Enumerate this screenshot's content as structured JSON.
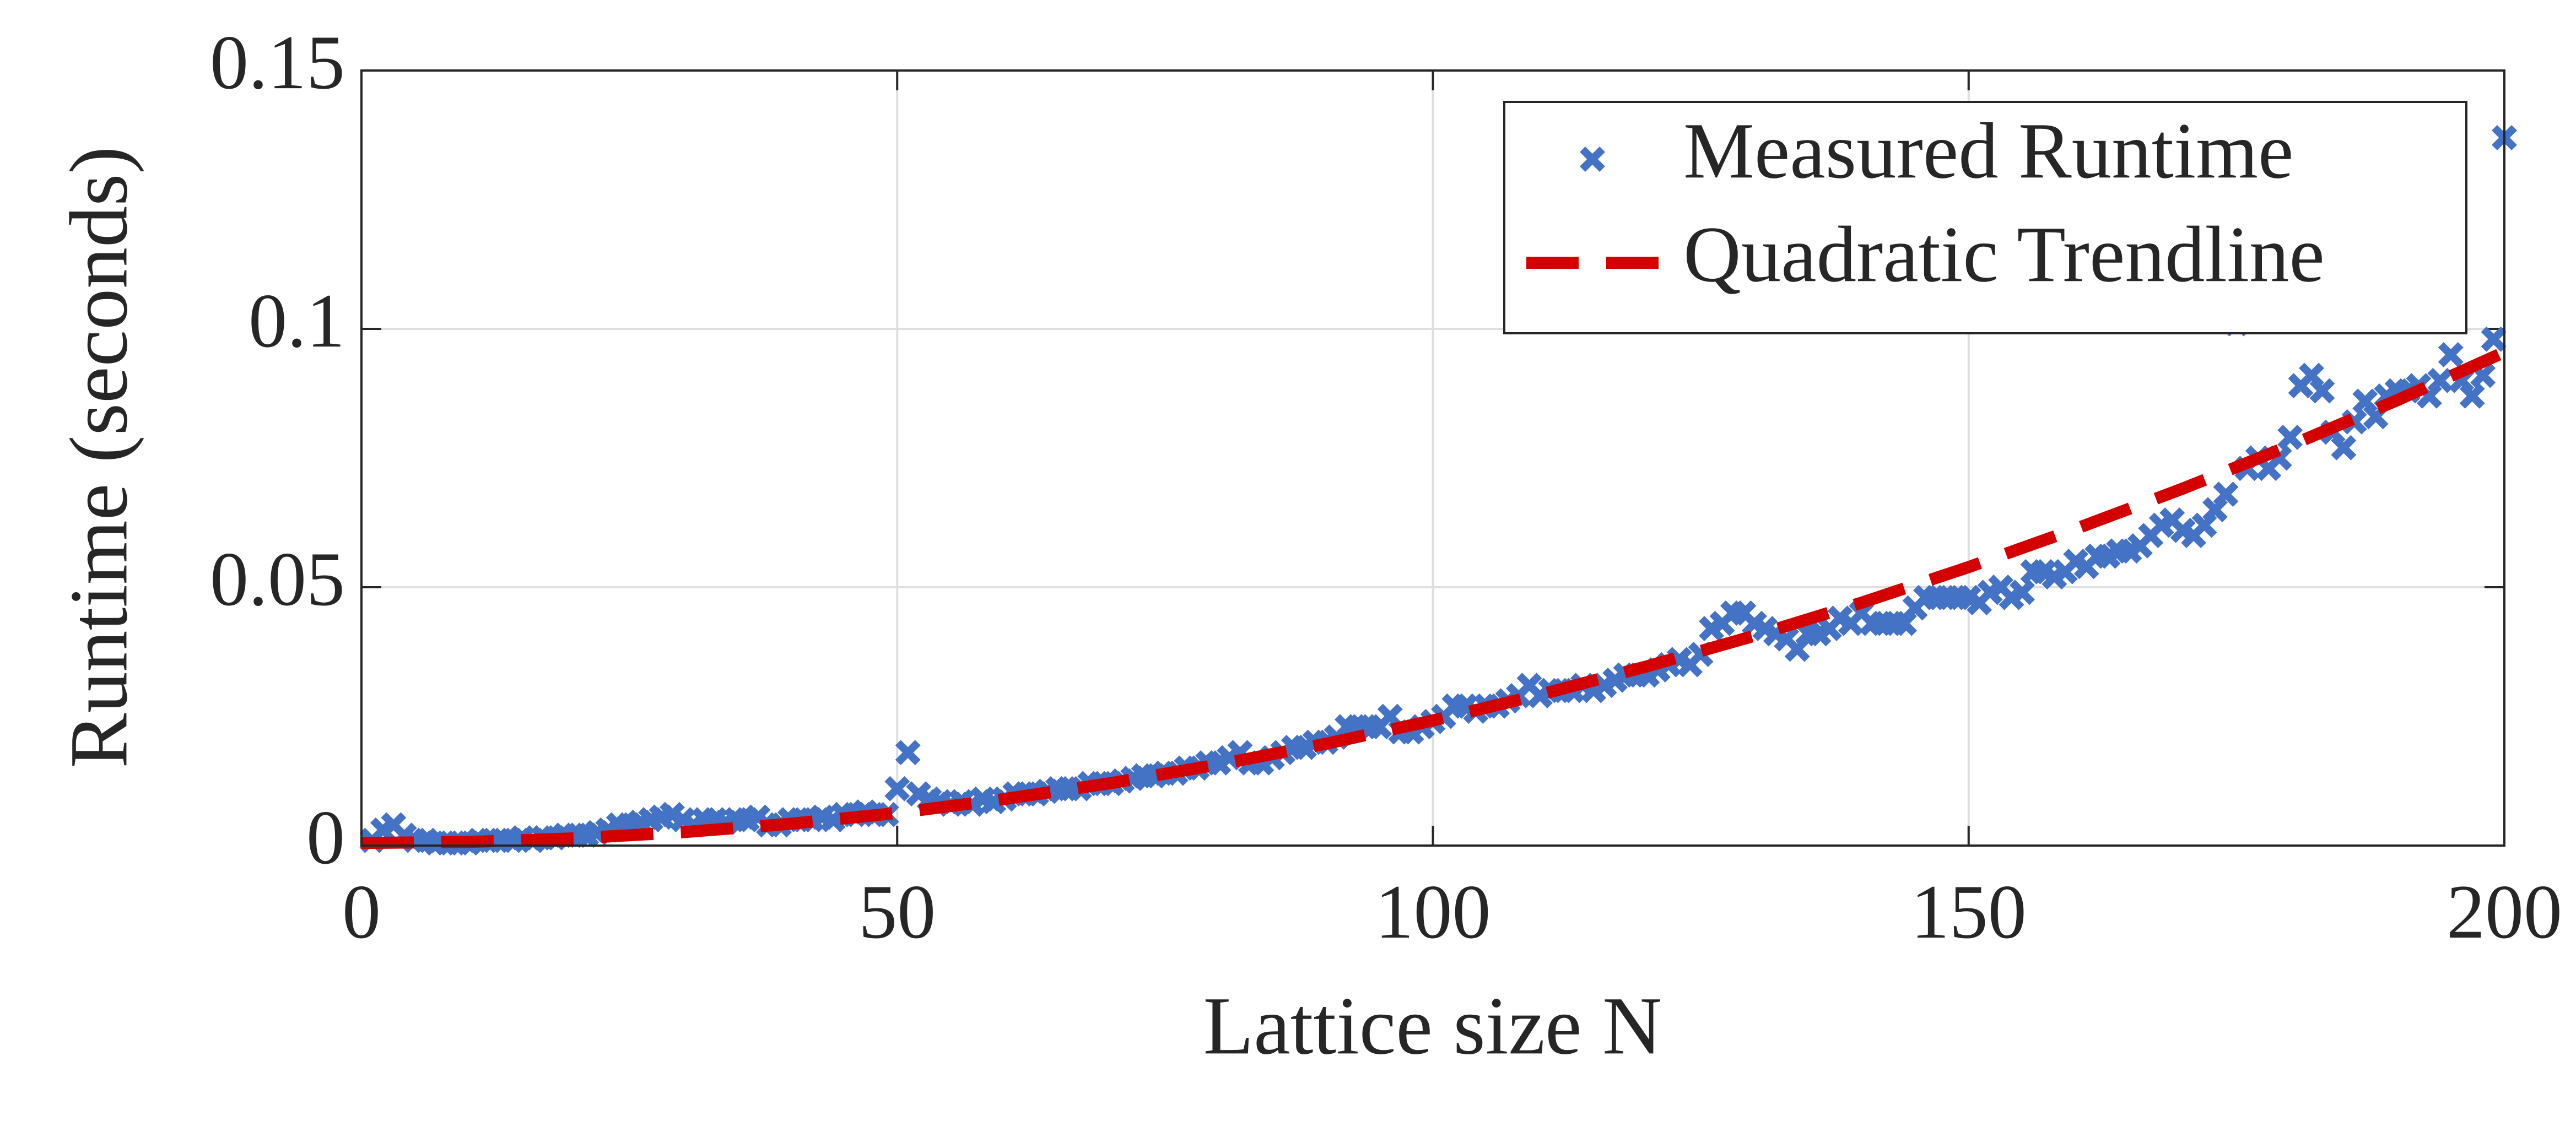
{
  "chart_data": {
    "type": "scatter",
    "xlabel": "Lattice size N",
    "ylabel": "Runtime (seconds)",
    "xlim": [
      0,
      200
    ],
    "ylim": [
      0,
      0.15
    ],
    "xticks": [
      0,
      50,
      100,
      150,
      200
    ],
    "yticks": [
      0,
      0.05,
      0.1,
      0.15
    ],
    "grid": true,
    "legend": "upper right",
    "series": [
      {
        "name": "Measured Runtime",
        "type": "scatter",
        "color": "#4472c4",
        "x": [
          1,
          2,
          3,
          4,
          5,
          6,
          7,
          8,
          9,
          10,
          11,
          12,
          13,
          14,
          15,
          16,
          17,
          18,
          19,
          20,
          21,
          22,
          23,
          24,
          25,
          26,
          27,
          28,
          29,
          30,
          31,
          32,
          33,
          34,
          35,
          36,
          37,
          38,
          39,
          40,
          41,
          42,
          43,
          44,
          45,
          46,
          47,
          48,
          49,
          50,
          51,
          52,
          53,
          54,
          55,
          56,
          57,
          58,
          59,
          60,
          61,
          62,
          63,
          64,
          65,
          66,
          67,
          68,
          69,
          70,
          71,
          72,
          73,
          74,
          75,
          76,
          77,
          78,
          79,
          80,
          81,
          82,
          83,
          84,
          85,
          86,
          87,
          88,
          89,
          90,
          91,
          92,
          93,
          94,
          95,
          96,
          97,
          98,
          99,
          100,
          101,
          102,
          103,
          104,
          105,
          106,
          107,
          108,
          109,
          110,
          111,
          112,
          113,
          114,
          115,
          116,
          117,
          118,
          119,
          120,
          121,
          122,
          123,
          124,
          125,
          126,
          127,
          128,
          129,
          130,
          131,
          132,
          133,
          134,
          135,
          136,
          137,
          138,
          139,
          140,
          141,
          142,
          143,
          144,
          145,
          146,
          147,
          148,
          149,
          150,
          151,
          152,
          153,
          154,
          155,
          156,
          157,
          158,
          159,
          160,
          161,
          162,
          163,
          164,
          165,
          166,
          167,
          168,
          169,
          170,
          171,
          172,
          173,
          174,
          175,
          176,
          177,
          178,
          179,
          180,
          181,
          182,
          183,
          184,
          185,
          186,
          187,
          188,
          189,
          190,
          191,
          192,
          193,
          194,
          195,
          196,
          197,
          198,
          199,
          200
        ],
        "values": [
          0.001,
          0.003,
          0.004,
          0.002,
          0.001,
          0.001,
          0.0005,
          0.0005,
          0.0005,
          0.0005,
          0.001,
          0.001,
          0.001,
          0.001,
          0.0015,
          0.001,
          0.0015,
          0.0015,
          0.002,
          0.002,
          0.002,
          0.0025,
          0.003,
          0.004,
          0.004,
          0.0045,
          0.005,
          0.0055,
          0.006,
          0.005,
          0.004,
          0.005,
          0.005,
          0.0045,
          0.005,
          0.005,
          0.0055,
          0.004,
          0.004,
          0.005,
          0.005,
          0.005,
          0.0055,
          0.005,
          0.006,
          0.006,
          0.0065,
          0.006,
          0.006,
          0.011,
          0.018,
          0.01,
          0.009,
          0.0085,
          0.008,
          0.0085,
          0.008,
          0.009,
          0.0085,
          0.009,
          0.01,
          0.01,
          0.01,
          0.0105,
          0.011,
          0.011,
          0.011,
          0.012,
          0.012,
          0.012,
          0.0125,
          0.013,
          0.0135,
          0.0135,
          0.014,
          0.014,
          0.015,
          0.015,
          0.016,
          0.016,
          0.017,
          0.018,
          0.016,
          0.016,
          0.017,
          0.018,
          0.019,
          0.019,
          0.02,
          0.02,
          0.021,
          0.023,
          0.023,
          0.023,
          0.023,
          0.025,
          0.022,
          0.022,
          0.023,
          0.024,
          0.025,
          0.027,
          0.027,
          0.026,
          0.027,
          0.027,
          0.028,
          0.029,
          0.031,
          0.029,
          0.03,
          0.03,
          0.03,
          0.031,
          0.03,
          0.031,
          0.032,
          0.033,
          0.033,
          0.033,
          0.034,
          0.035,
          0.036,
          0.035,
          0.037,
          0.042,
          0.043,
          0.045,
          0.045,
          0.043,
          0.042,
          0.041,
          0.04,
          0.038,
          0.041,
          0.041,
          0.042,
          0.044,
          0.043,
          0.045,
          0.043,
          0.043,
          0.043,
          0.043,
          0.046,
          0.048,
          0.048,
          0.048,
          0.048,
          0.048,
          0.047,
          0.049,
          0.05,
          0.048,
          0.049,
          0.053,
          0.053,
          0.052,
          0.053,
          0.055,
          0.054,
          0.056,
          0.056,
          0.057,
          0.057,
          0.058,
          0.06,
          0.062,
          0.063,
          0.061,
          0.06,
          0.062,
          0.065,
          0.068,
          0.101,
          0.073,
          0.075,
          0.073,
          0.075,
          0.079,
          0.089,
          0.091,
          0.088,
          0.08,
          0.077,
          0.082,
          0.086,
          0.083,
          0.087,
          0.088,
          0.088,
          0.089,
          0.087,
          0.09,
          0.095,
          0.09,
          0.087,
          0.091,
          0.098,
          0.137
        ]
      },
      {
        "name": "Quadratic Trendline",
        "type": "line",
        "color": "#d40000",
        "x": [
          0,
          10,
          20,
          30,
          40,
          50,
          60,
          70,
          80,
          90,
          100,
          110,
          120,
          130,
          140,
          150,
          160,
          170,
          180,
          190,
          200
        ],
        "values": [
          0.0005,
          0.0007,
          0.0014,
          0.0026,
          0.0042,
          0.0063,
          0.009,
          0.0121,
          0.0157,
          0.0197,
          0.0242,
          0.0292,
          0.0347,
          0.0406,
          0.047,
          0.0539,
          0.0613,
          0.0691,
          0.0774,
          0.0862,
          0.0955
        ]
      }
    ]
  }
}
